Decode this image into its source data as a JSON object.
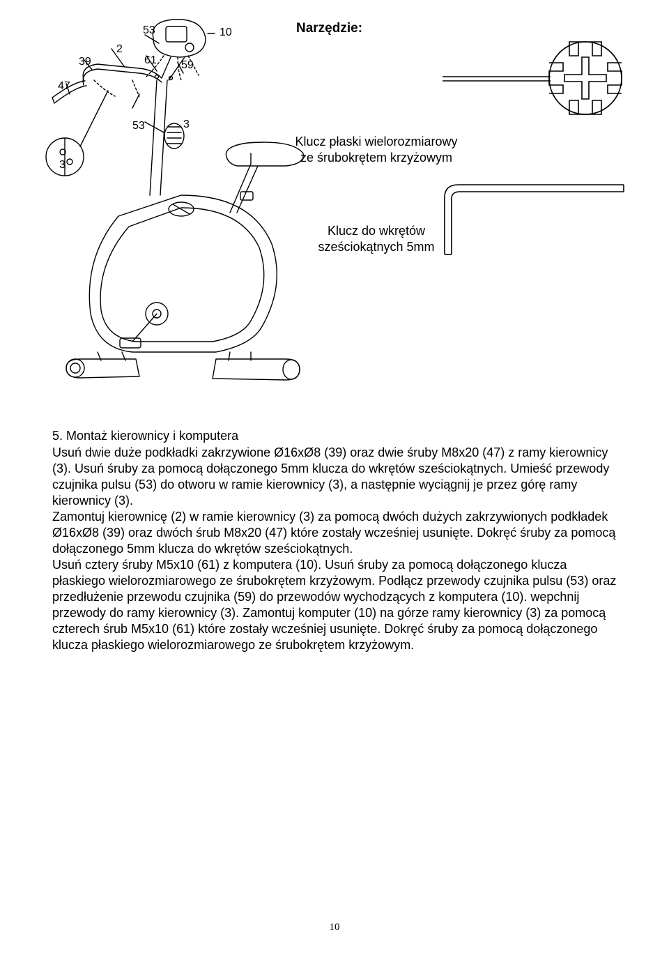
{
  "tools": {
    "heading": "Narzędzie:",
    "tool1_label": "Klucz płaski wielorozmiarowy ze śrubokrętem krzyżowym",
    "tool2_label": "Klucz do wkrętów sześciokątnych 5mm"
  },
  "callouts": {
    "c53a": "53",
    "c10": "10",
    "c2": "2",
    "c39": "39",
    "c61": "61",
    "c59": "59",
    "c47": "47",
    "c53b": "53",
    "c3a": "3",
    "c3b": "3"
  },
  "section": {
    "title": "5. Montaż kierownicy i komputera",
    "body": "Usuń dwie duże podkładki zakrzywione Ø16xØ8 (39) oraz dwie śruby M8x20 (47) z ramy kierownicy (3). Usuń śruby za pomocą dołączonego 5mm klucza do wkrętów sześciokątnych. Umieść przewody czujnika pulsu (53) do otworu w ramie kierownicy (3), a następnie wyciągnij je przez górę ramy kierownicy (3).\nZamontuj kierownicę (2) w ramie kierownicy (3) za pomocą dwóch dużych zakrzywionych podkładek Ø16xØ8 (39) oraz dwóch śrub M8x20 (47) które zostały wcześniej usunięte. Dokręć śruby za pomocą dołączonego 5mm klucza do wkrętów sześciokątnych.\nUsuń cztery śruby M5x10 (61) z komputera (10). Usuń śruby za pomocą dołączonego klucza płaskiego wielorozmiarowego ze śrubokrętem krzyżowym. Podłącz przewody czujnika pulsu (53) oraz przedłużenie przewodu czujnika (59) do przewodów wychodzących z komputera (10). wepchnij przewody do ramy kierownicy (3). Zamontuj komputer (10) na górze ramy kierownicy (3) za pomocą czterech śrub M5x10 (61) które zostały wcześniej usunięte. Dokręć śruby za pomocą dołączonego klucza płaskiego wielorozmiarowego ze śrubokrętem krzyżowym."
  },
  "page_number": "10",
  "colors": {
    "stroke": "#000000",
    "bg": "#ffffff"
  }
}
